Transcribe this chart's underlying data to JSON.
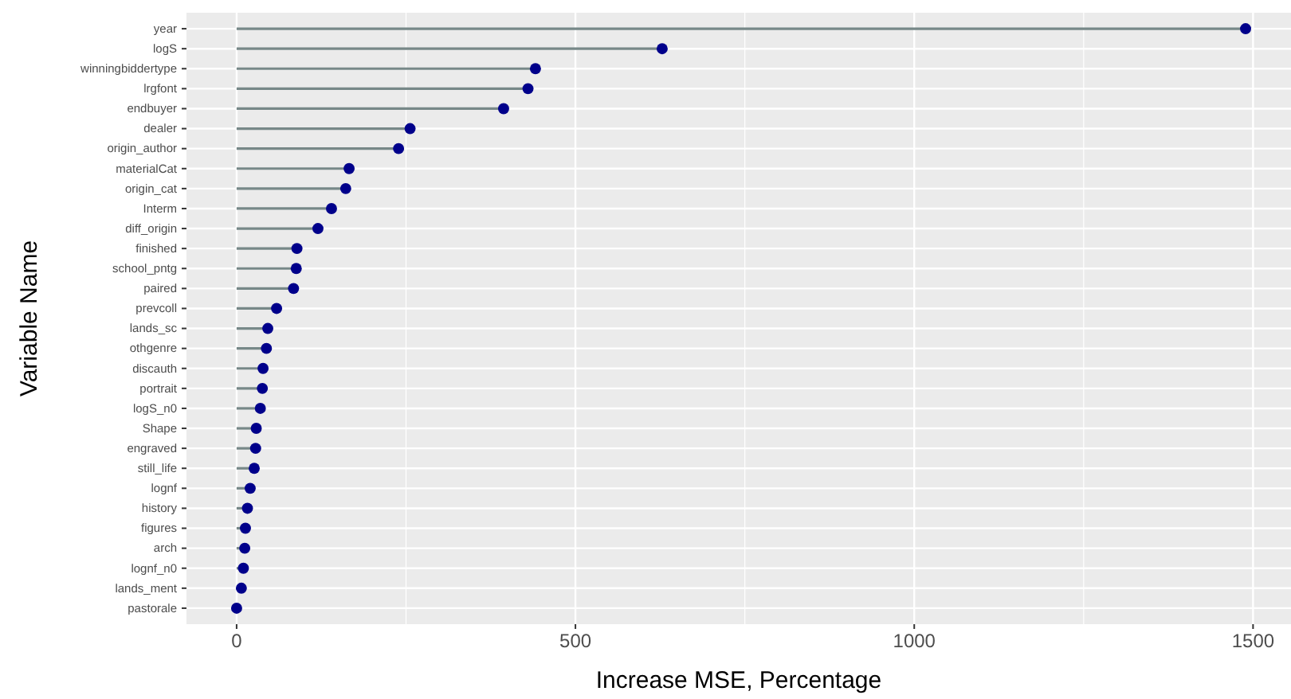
{
  "chart_data": {
    "type": "lollipop",
    "orientation": "horizontal",
    "xlabel": "Increase MSE, Percentage",
    "ylabel": "Variable Name",
    "categories": [
      "year",
      "logS",
      "winningbiddertype",
      "lrgfont",
      "endbuyer",
      "dealer",
      "origin_author",
      "materialCat",
      "origin_cat",
      "Interm",
      "diff_origin",
      "finished",
      "school_pntg",
      "paired",
      "prevcoll",
      "lands_sc",
      "othgenre",
      "discauth",
      "portrait",
      "logS_n0",
      "Shape",
      "engraved",
      "still_life",
      "lognf",
      "history",
      "figures",
      "arch",
      "lognf_n0",
      "lands_ment",
      "pastorale"
    ],
    "series": [
      {
        "color": "#00008b",
        "values": [
          1489,
          628,
          441,
          430,
          394,
          256,
          239,
          166,
          161,
          140,
          120,
          89,
          88,
          84,
          59,
          46,
          44,
          39,
          38,
          35,
          29,
          28,
          26,
          20,
          16,
          13,
          12,
          10,
          7,
          0
        ]
      }
    ],
    "xlim": [
      -74,
      1556
    ],
    "xticks": [
      0,
      500,
      1000,
      1500
    ],
    "grid": true,
    "marker": "circle"
  }
}
